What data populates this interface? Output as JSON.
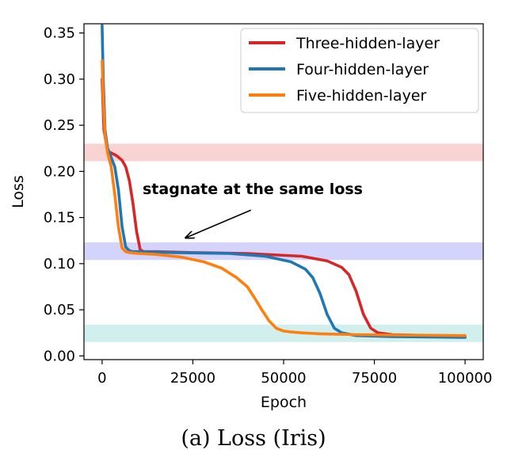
{
  "chart_data": {
    "type": "line",
    "xlabel": "Epoch",
    "ylabel": "Loss",
    "xlim": [
      -5000,
      105000
    ],
    "ylim": [
      -0.004,
      0.36
    ],
    "x_ticks": [
      0,
      25000,
      50000,
      75000,
      100000
    ],
    "x_tick_labels": [
      "0",
      "25000",
      "50000",
      "75000",
      "100000"
    ],
    "y_ticks": [
      0.0,
      0.05,
      0.1,
      0.15,
      0.2,
      0.25,
      0.3,
      0.35
    ],
    "y_tick_labels": [
      "0.00",
      "0.05",
      "0.10",
      "0.15",
      "0.20",
      "0.25",
      "0.30",
      "0.35"
    ],
    "grid": false,
    "legend_position": "top-right",
    "series": [
      {
        "name": "Three-hidden-layer",
        "color": "#d62728",
        "x": [
          0,
          500,
          1500,
          2500,
          4000,
          5500,
          6500,
          7500,
          8500,
          9500,
          10500,
          11500,
          15000,
          25000,
          40000,
          55000,
          62000,
          66000,
          68000,
          70000,
          72000,
          74000,
          76000,
          80000,
          90000,
          100000
        ],
        "y": [
          0.3,
          0.245,
          0.222,
          0.22,
          0.217,
          0.212,
          0.205,
          0.19,
          0.165,
          0.135,
          0.115,
          0.113,
          0.113,
          0.112,
          0.111,
          0.108,
          0.103,
          0.096,
          0.088,
          0.07,
          0.045,
          0.03,
          0.025,
          0.023,
          0.022,
          0.021
        ]
      },
      {
        "name": "Four-hidden-layer",
        "color": "#1f77b4",
        "x": [
          0,
          300,
          800,
          1500,
          2500,
          3500,
          4500,
          5500,
          6500,
          7500,
          8500,
          10000,
          20000,
          35000,
          45000,
          52000,
          56000,
          58000,
          60000,
          62000,
          64000,
          66000,
          70000,
          80000,
          100000
        ],
        "y": [
          0.358,
          0.3,
          0.245,
          0.225,
          0.215,
          0.205,
          0.18,
          0.14,
          0.118,
          0.114,
          0.113,
          0.113,
          0.112,
          0.111,
          0.108,
          0.102,
          0.094,
          0.085,
          0.068,
          0.045,
          0.03,
          0.025,
          0.022,
          0.021,
          0.02
        ]
      },
      {
        "name": "Five-hidden-layer",
        "color": "#ff7f0e",
        "x": [
          0,
          300,
          800,
          1500,
          2500,
          3500,
          4500,
          5500,
          6500,
          7500,
          10000,
          15000,
          22000,
          28000,
          33000,
          37000,
          40000,
          42000,
          44000,
          46000,
          48000,
          50000,
          52000,
          55000,
          60000,
          70000,
          100000
        ],
        "y": [
          0.32,
          0.28,
          0.24,
          0.22,
          0.205,
          0.175,
          0.14,
          0.117,
          0.113,
          0.112,
          0.111,
          0.11,
          0.107,
          0.102,
          0.095,
          0.085,
          0.075,
          0.063,
          0.05,
          0.038,
          0.03,
          0.027,
          0.026,
          0.025,
          0.024,
          0.023,
          0.022
        ]
      }
    ],
    "bands": [
      {
        "y_min": 0.211,
        "y_max": 0.23,
        "color": "#f4a6a6"
      },
      {
        "y_min": 0.104,
        "y_max": 0.123,
        "color": "#a8a8f7"
      },
      {
        "y_min": 0.015,
        "y_max": 0.034,
        "color": "#a3e2db"
      }
    ],
    "annotation": {
      "text": "stagnate at the same loss",
      "arrow_tail": [
        41000,
        0.158
      ],
      "arrow_head": [
        23000,
        0.128
      ]
    }
  },
  "caption": "(a) Loss (Iris)"
}
